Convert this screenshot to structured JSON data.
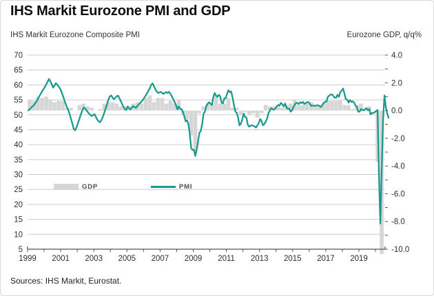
{
  "title": "IHS Markit Eurozone PMI and GDP",
  "subtitle_left": "IHS Markit Eurozone Composite PMI",
  "subtitle_right": "Eurozone GDP, q/q%",
  "source": "Sources: IHS Markit, Eurostat.",
  "legend": {
    "gdp_label": "GDP",
    "pmi_label": "PMI"
  },
  "colors": {
    "pmi_line": "#1a9a8d",
    "gdp_bar": "#d6d6d6",
    "grid": "#cccccc",
    "axis": "#555555",
    "tick_text": "#2e2e2e"
  },
  "chart_data": {
    "type": "line+bar",
    "title": "IHS Markit Eurozone PMI and GDP",
    "grid": "horizontal-on",
    "legend_position": "inside-left-middle",
    "left_axis": {
      "label": "IHS Markit Eurozone Composite PMI",
      "min": 5,
      "max": 70,
      "ticks": [
        70,
        65,
        60,
        55,
        50,
        45,
        40,
        35,
        30,
        25,
        20,
        15,
        10,
        5
      ]
    },
    "right_axis": {
      "label": "Eurozone GDP, q/q%",
      "min": -10,
      "max": 4,
      "tick_values": [
        4,
        2,
        0,
        -2,
        -4,
        -6,
        -8,
        -10
      ],
      "tick_labels": [
        "4.0",
        "2.0",
        "0.0",
        "-2.0",
        "-4.0",
        "-6.0",
        "-8.0",
        "-10.0"
      ],
      "minor_tick_step": 1
    },
    "x_axis": {
      "start_year": 1999,
      "end_year": 2020.6,
      "tick_years": [
        1999,
        2000,
        2001,
        2002,
        2003,
        2004,
        2005,
        2006,
        2007,
        2008,
        2009,
        2010,
        2011,
        2012,
        2013,
        2014,
        2015,
        2016,
        2017,
        2018,
        2019,
        2020
      ],
      "label_years": [
        "1999",
        "2001",
        "2003",
        "2005",
        "2007",
        "2009",
        "2011",
        "2013",
        "2015",
        "2017",
        "2019"
      ]
    },
    "series": [
      {
        "name": "PMI",
        "type": "line",
        "axis": "left",
        "frequency": "monthly",
        "values_by_year": {
          "1999": [
            51.5,
            51.8,
            52.3,
            52.8,
            53.2,
            53.8,
            54.5,
            55.3,
            56.2,
            57.0,
            57.8,
            58.5
          ],
          "2000": [
            59.3,
            60.2,
            61.0,
            62.0,
            61.2,
            60.2,
            59.1,
            59.8,
            60.6,
            60.1,
            59.5,
            58.8
          ],
          "2001": [
            57.8,
            56.5,
            55.2,
            53.8,
            52.6,
            51.6,
            50.2,
            48.6,
            47.0,
            45.2,
            44.8,
            45.8
          ],
          "2002": [
            47.2,
            48.6,
            50.0,
            51.3,
            52.4,
            52.2,
            51.6,
            51.0,
            50.4,
            49.9,
            49.6,
            49.9
          ],
          "2003": [
            50.2,
            49.3,
            48.4,
            47.8,
            47.5,
            48.2,
            49.3,
            50.6,
            52.0,
            53.5,
            55.0,
            56.1
          ],
          "2004": [
            56.5,
            55.8,
            55.2,
            55.7,
            56.2,
            56.4,
            55.6,
            54.6,
            53.6,
            52.6,
            51.9,
            51.6
          ],
          "2005": [
            52.8,
            52.2,
            51.8,
            52.4,
            52.9,
            52.6,
            52.3,
            52.9,
            53.5,
            53.9,
            54.4,
            55.0
          ],
          "2006": [
            55.7,
            56.4,
            57.2,
            58.0,
            58.9,
            60.0,
            60.5,
            59.6,
            58.6,
            57.8,
            57.3,
            57.5
          ],
          "2007": [
            57.7,
            57.3,
            57.0,
            57.4,
            57.6,
            57.3,
            57.7,
            57.0,
            56.2,
            55.3,
            54.3,
            53.3
          ],
          "2008": [
            51.8,
            52.8,
            52.0,
            51.9,
            51.1,
            49.5,
            47.8,
            48.2,
            46.9,
            43.6,
            38.9,
            38.2
          ],
          "2009": [
            38.3,
            36.2,
            38.3,
            41.1,
            44.0,
            44.6,
            47.0,
            50.4,
            51.1,
            53.0,
            53.7,
            54.2
          ],
          "2010": [
            53.7,
            53.3,
            55.9,
            57.3,
            56.4,
            56.0,
            56.7,
            56.2,
            54.1,
            53.8,
            55.5,
            55.5
          ],
          "2011": [
            57.0,
            58.2,
            57.6,
            57.8,
            55.8,
            53.3,
            51.1,
            50.7,
            49.1,
            46.5,
            47.0,
            48.3
          ],
          "2012": [
            50.4,
            49.3,
            49.1,
            46.7,
            46.0,
            46.4,
            46.5,
            46.3,
            46.1,
            45.7,
            46.5,
            47.2
          ],
          "2013": [
            48.6,
            47.9,
            46.5,
            46.9,
            47.7,
            48.7,
            50.5,
            51.5,
            52.2,
            51.9,
            51.7,
            52.1
          ],
          "2014": [
            52.9,
            53.3,
            53.1,
            54.0,
            53.5,
            52.8,
            53.8,
            52.5,
            52.0,
            52.1,
            51.1,
            51.4
          ],
          "2015": [
            52.6,
            53.3,
            54.0,
            53.9,
            53.6,
            54.2,
            53.9,
            54.3,
            53.6,
            53.9,
            54.2,
            54.3
          ],
          "2016": [
            53.6,
            53.0,
            53.1,
            53.0,
            53.1,
            53.1,
            53.2,
            52.9,
            52.6,
            53.3,
            53.9,
            54.4
          ],
          "2017": [
            54.4,
            56.0,
            56.4,
            56.8,
            56.8,
            56.3,
            55.7,
            55.7,
            56.7,
            56.0,
            57.5,
            58.1
          ],
          "2018": [
            58.8,
            57.1,
            55.2,
            55.1,
            54.1,
            54.9,
            54.3,
            54.5,
            54.1,
            53.1,
            52.7,
            51.1
          ],
          "2019": [
            51.0,
            51.9,
            51.6,
            51.5,
            51.8,
            52.2,
            51.5,
            51.9,
            50.1,
            50.6,
            50.6,
            50.9
          ],
          "2020": [
            51.3,
            51.6,
            29.7,
            13.6,
            31.9,
            48.5,
            56.5,
            52.5,
            50.4,
            49.0
          ]
        }
      },
      {
        "name": "GDP",
        "type": "bar",
        "axis": "right",
        "frequency": "quarterly",
        "values_by_year": {
          "1999": [
            0.8,
            0.7,
            1.0,
            0.9
          ],
          "2000": [
            1.0,
            0.8,
            0.6,
            0.7
          ],
          "2001": [
            0.7,
            0.2,
            0.2,
            0.0
          ],
          "2002": [
            0.4,
            0.5,
            0.3,
            0.2
          ],
          "2003": [
            0.0,
            0.1,
            0.5,
            0.6
          ],
          "2004": [
            0.6,
            0.5,
            0.3,
            0.3
          ],
          "2005": [
            0.3,
            0.5,
            0.6,
            0.5
          ],
          "2006": [
            0.9,
            1.1,
            0.6,
            0.9
          ],
          "2007": [
            0.9,
            0.5,
            0.7,
            0.5
          ],
          "2008": [
            0.8,
            -0.3,
            -0.6,
            -1.8
          ],
          "2009": [
            -3.0,
            -0.2,
            0.3,
            0.5
          ],
          "2010": [
            0.5,
            1.0,
            0.5,
            0.5
          ],
          "2011": [
            0.9,
            0.2,
            0.2,
            -0.3
          ],
          "2012": [
            -0.1,
            -0.3,
            -0.2,
            -0.5
          ],
          "2013": [
            -0.2,
            0.4,
            0.3,
            0.3
          ],
          "2014": [
            0.3,
            0.2,
            0.4,
            0.5
          ],
          "2015": [
            0.8,
            0.4,
            0.4,
            0.5
          ],
          "2016": [
            0.6,
            0.3,
            0.4,
            0.6
          ],
          "2017": [
            0.7,
            0.7,
            0.7,
            0.8
          ],
          "2018": [
            0.4,
            0.4,
            0.1,
            0.4
          ],
          "2019": [
            0.5,
            0.2,
            0.3,
            0.0
          ],
          "2020": [
            -3.7,
            -11.8
          ]
        }
      }
    ]
  }
}
